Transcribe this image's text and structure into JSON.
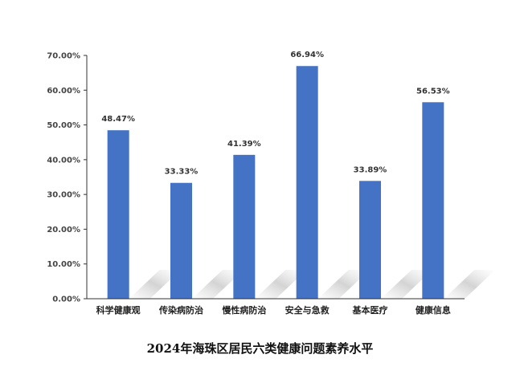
{
  "chart_data": {
    "type": "bar",
    "title": "2024年海珠区居民六类健康问题素养水平",
    "categories": [
      "科学健康观",
      "传染病防治",
      "慢性病防治",
      "安全与急救",
      "基本医疗",
      "健康信息"
    ],
    "values": [
      48.47,
      33.33,
      41.39,
      66.94,
      33.89,
      56.53
    ],
    "value_labels": [
      "48.47%",
      "33.33%",
      "41.39%",
      "66.94%",
      "33.89%",
      "56.53%"
    ],
    "y_ticks": [
      "0.00%",
      "10.00%",
      "20.00%",
      "30.00%",
      "40.00%",
      "50.00%",
      "60.00%",
      "70.00%"
    ],
    "ylim": [
      0,
      70
    ],
    "xlabel": "",
    "ylabel": "",
    "grid": false,
    "legend": "none",
    "bar_color": "#4472C4"
  }
}
